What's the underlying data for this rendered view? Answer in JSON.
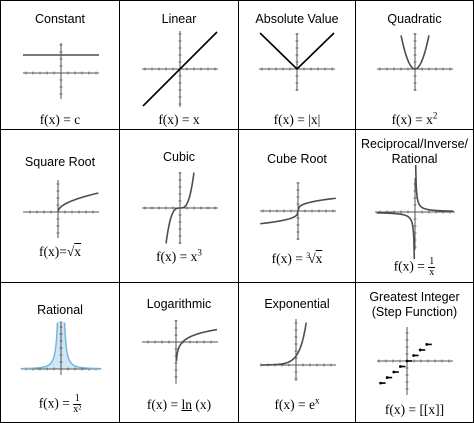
{
  "cards": [
    {
      "id": "constant",
      "title": "Constant",
      "formula": {
        "lhs": "f(x) = ",
        "rhs": "c"
      }
    },
    {
      "id": "linear",
      "title": "Linear",
      "formula": {
        "lhs": "f(x) = ",
        "rhs": "x"
      }
    },
    {
      "id": "absolute",
      "title": "Absolute Value",
      "formula": {
        "lhs": "f(x) = ",
        "rhs": "|x|"
      }
    },
    {
      "id": "quadratic",
      "title": "Quadratic",
      "formula": {
        "lhs": "f(x) = ",
        "base": "x",
        "exp": "2"
      }
    },
    {
      "id": "sqrt",
      "title": "Square Root",
      "formula": {
        "lhs": "f(x)=",
        "radical": "√",
        "radicand": "x"
      }
    },
    {
      "id": "cubic",
      "title": "Cubic",
      "formula": {
        "lhs": "f(x) = ",
        "base": "x",
        "exp": "3"
      }
    },
    {
      "id": "cuberoot",
      "title": "Cube Root",
      "formula": {
        "lhs": "f(x) = ",
        "index": "3",
        "radical": "√",
        "radicand": "x"
      }
    },
    {
      "id": "reciprocal",
      "title_lines": [
        "Reciprocal/Inverse/",
        "Rational"
      ],
      "formula": {
        "lhs": "f(x) = ",
        "num": "1",
        "den": "x"
      }
    },
    {
      "id": "rational",
      "title": "Rational",
      "formula": {
        "lhs": "f(x) = ",
        "num": "1",
        "den": "x²"
      }
    },
    {
      "id": "log",
      "title": "Logarithmic",
      "formula": {
        "lhs": "f(x) = ",
        "fn": "ln",
        "arg": " (x)"
      }
    },
    {
      "id": "exponential",
      "title": "Exponential",
      "formula": {
        "lhs": "f(x) = ",
        "base": "e",
        "exp": "x"
      }
    },
    {
      "id": "step",
      "title_lines": [
        "Greatest Integer",
        "(Step Function)"
      ],
      "formula": {
        "lhs": "f(x) = ",
        "rhs": "[[x]]"
      }
    }
  ],
  "colors": {
    "line": "#000000",
    "graph": "#4d4d4d",
    "axis": "#555555",
    "rational_fill": "#cfe6f5",
    "rational_curve": "#6fb3de"
  }
}
